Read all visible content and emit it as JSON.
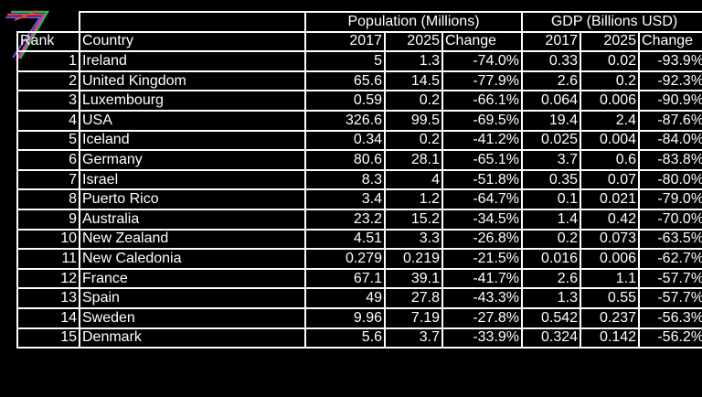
{
  "chart_data": {
    "type": "table",
    "group_headers": [
      "Population (Millions)",
      "GDP (Billions USD)"
    ],
    "columns": [
      "Rank",
      "Country",
      "2017",
      "2025",
      "Change",
      "2017",
      "2025",
      "Change"
    ],
    "rows": [
      [
        "1",
        "Ireland",
        "5",
        "1.3",
        "-74.0%",
        "0.33",
        "0.02",
        "-93.9%"
      ],
      [
        "2",
        "United Kingdom",
        "65.6",
        "14.5",
        "-77.9%",
        "2.6",
        "0.2",
        "-92.3%"
      ],
      [
        "3",
        "Luxembourg",
        "0.59",
        "0.2",
        "-66.1%",
        "0.064",
        "0.006",
        "-90.9%"
      ],
      [
        "4",
        "USA",
        "326.6",
        "99.5",
        "-69.5%",
        "19.4",
        "2.4",
        "-87.6%"
      ],
      [
        "5",
        "Iceland",
        "0.34",
        "0.2",
        "-41.2%",
        "0.025",
        "0.004",
        "-84.0%"
      ],
      [
        "6",
        "Germany",
        "80.6",
        "28.1",
        "-65.1%",
        "3.7",
        "0.6",
        "-83.8%"
      ],
      [
        "7",
        "Israel",
        "8.3",
        "4",
        "-51.8%",
        "0.35",
        "0.07",
        "-80.0%"
      ],
      [
        "8",
        "Puerto Rico",
        "3.4",
        "1.2",
        "-64.7%",
        "0.1",
        "0.021",
        "-79.0%"
      ],
      [
        "9",
        "Australia",
        "23.2",
        "15.2",
        "-34.5%",
        "1.4",
        "0.42",
        "-70.0%"
      ],
      [
        "10",
        "New Zealand",
        "4.51",
        "3.3",
        "-26.8%",
        "0.2",
        "0.073",
        "-63.5%"
      ],
      [
        "11",
        "New Caledonia",
        "0.279",
        "0.219",
        "-21.5%",
        "0.016",
        "0.006",
        "-62.7%"
      ],
      [
        "12",
        "France",
        "67.1",
        "39.1",
        "-41.7%",
        "2.6",
        "1.1",
        "-57.7%"
      ],
      [
        "13",
        "Spain",
        "49",
        "27.8",
        "-43.3%",
        "1.3",
        "0.55",
        "-57.7%"
      ],
      [
        "14",
        "Sweden",
        "9.96",
        "7.19",
        "-27.8%",
        "0.542",
        "0.237",
        "-56.3%"
      ],
      [
        "15",
        "Denmark",
        "5.6",
        "3.7",
        "-33.9%",
        "0.324",
        "0.142",
        "-56.2%"
      ]
    ]
  },
  "logo_icon": "colored-seven-logo"
}
